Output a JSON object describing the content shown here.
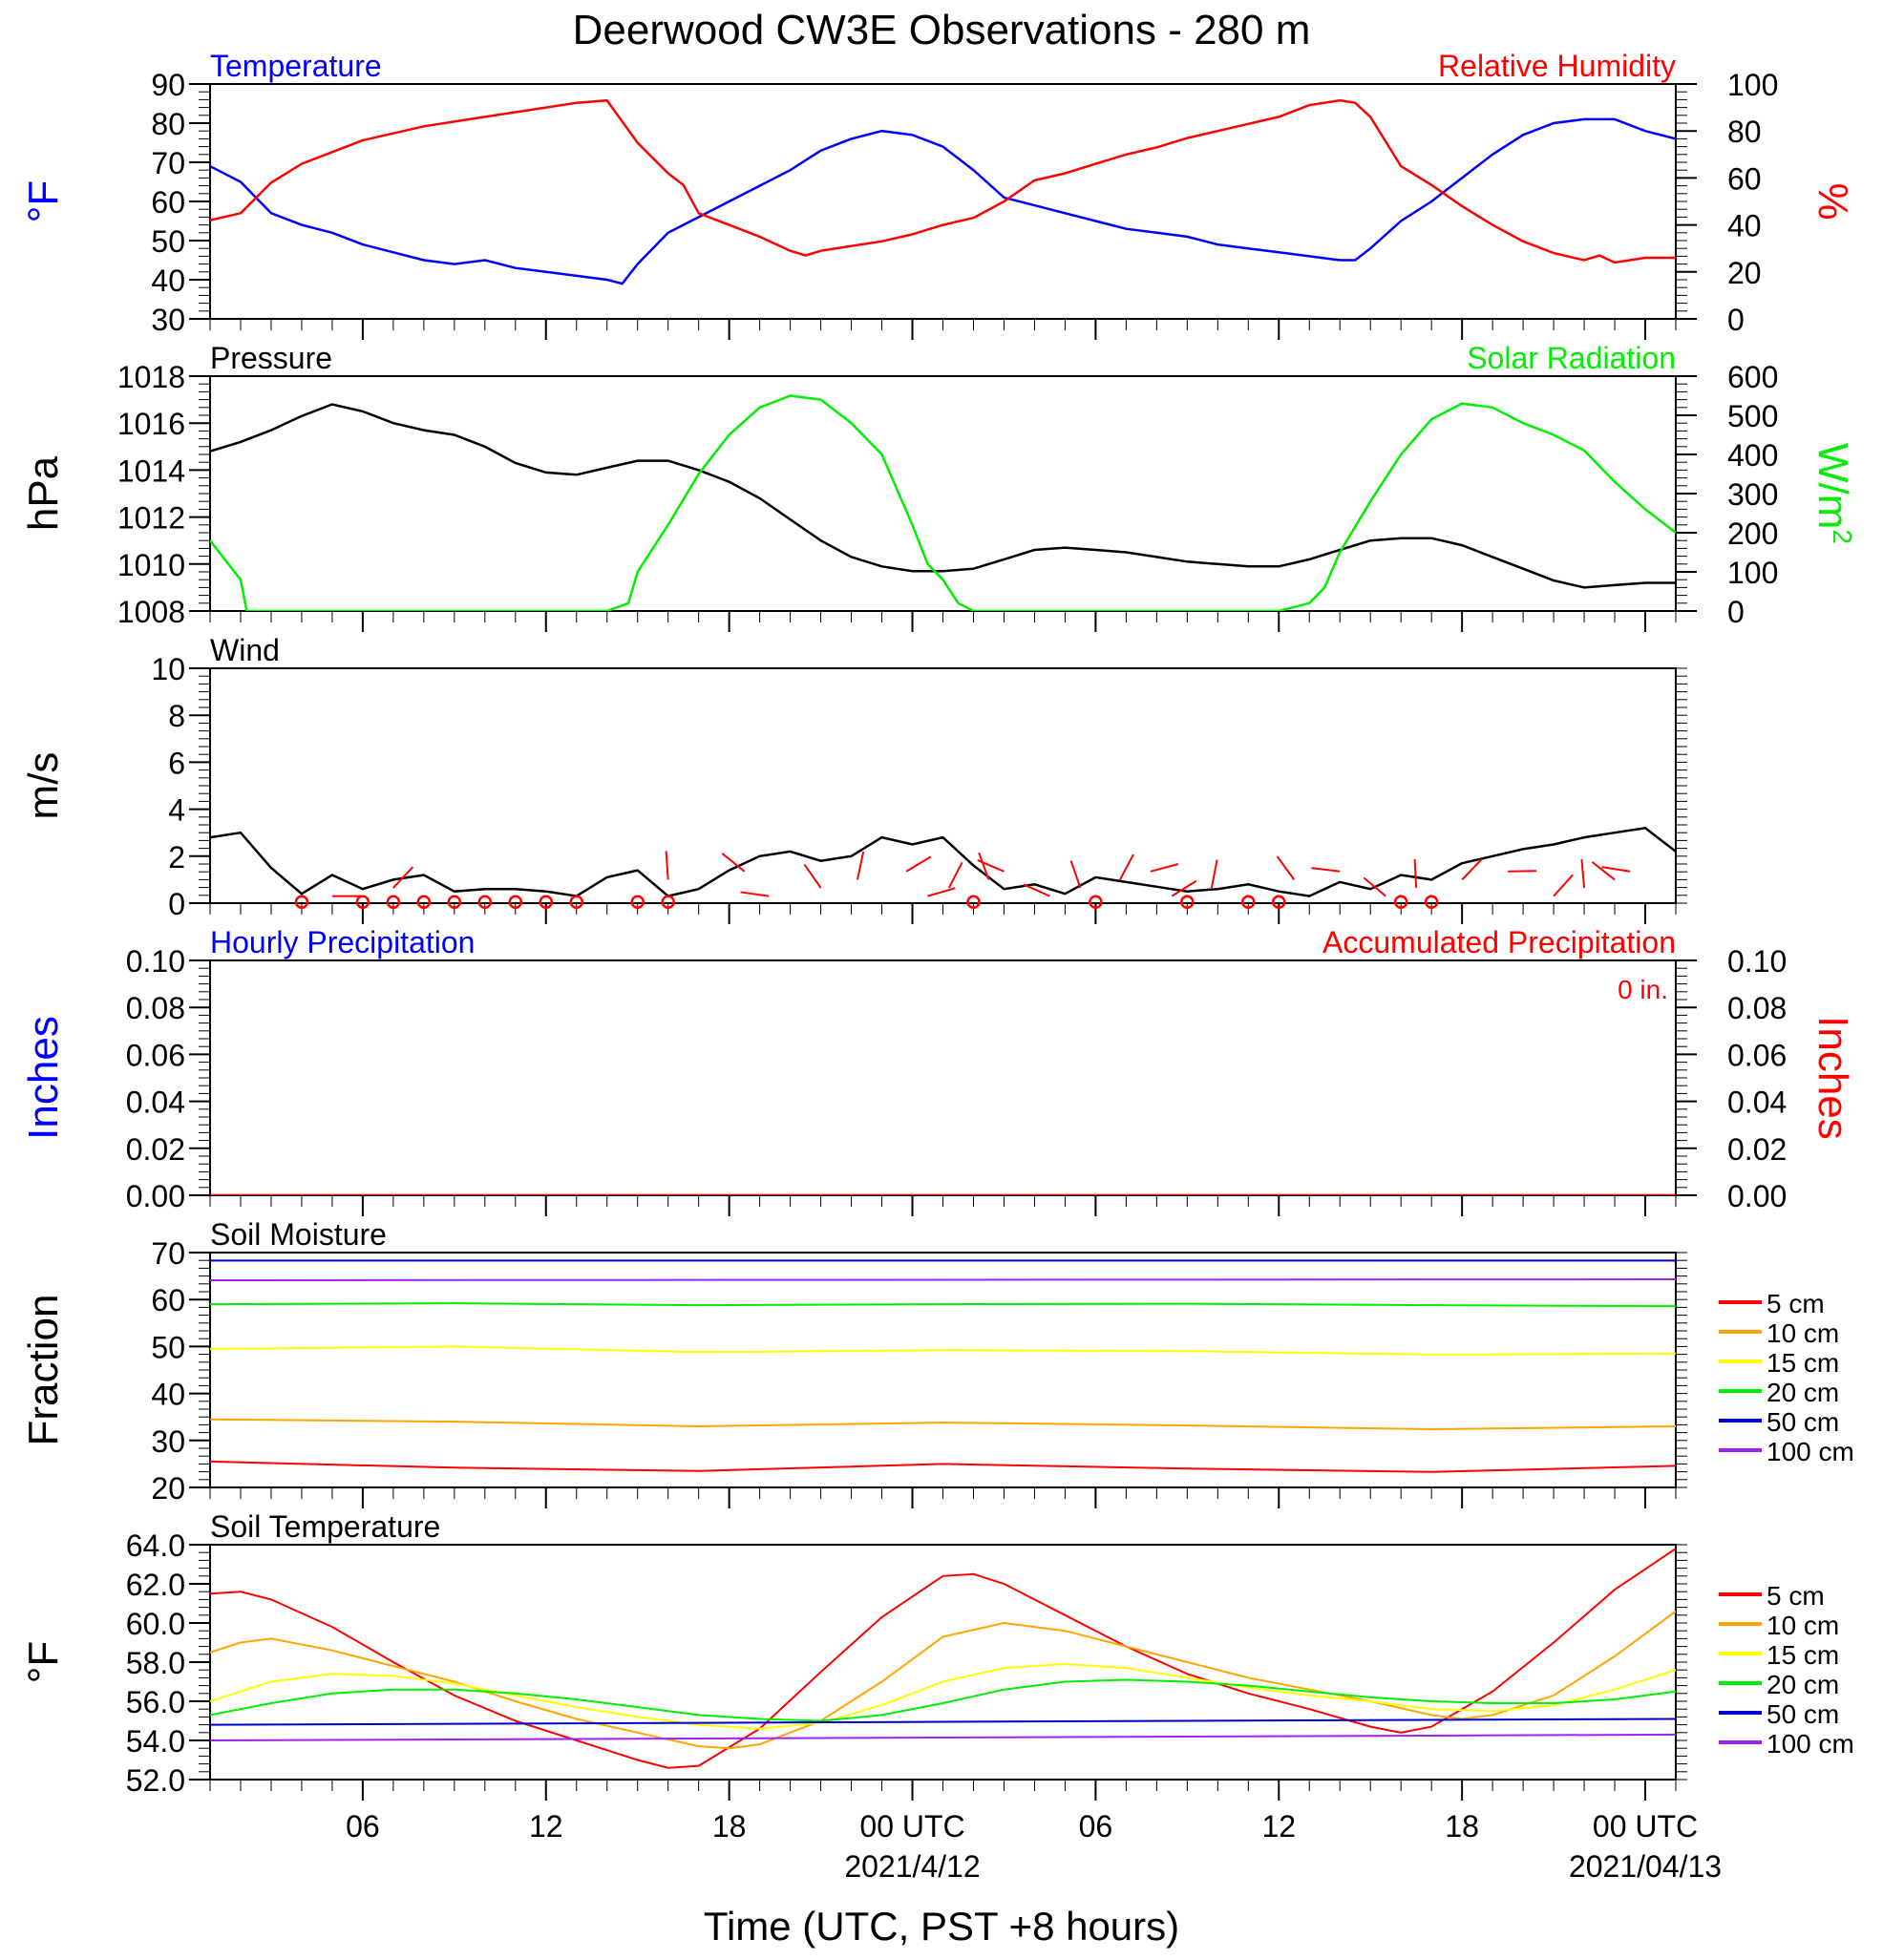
{
  "title": "Deerwood CW3E Observations - 280 m",
  "xlabel": "Time (UTC, PST +8 hours)",
  "x_axis": {
    "range_hours": [
      0,
      48
    ],
    "ticks": [
      {
        "h": 5,
        "label": "06",
        "date": ""
      },
      {
        "h": 11,
        "label": "12",
        "date": ""
      },
      {
        "h": 17,
        "label": "18",
        "date": ""
      },
      {
        "h": 23,
        "label": "00 UTC",
        "date": "2021/4/12"
      },
      {
        "h": 29,
        "label": "06",
        "date": ""
      },
      {
        "h": 35,
        "label": "12",
        "date": ""
      },
      {
        "h": 41,
        "label": "18",
        "date": ""
      },
      {
        "h": 47,
        "label": "00 UTC",
        "date": "2021/04/13"
      }
    ]
  },
  "colors": {
    "blue": "#0000ff",
    "red": "#ff0000",
    "green": "#00ee00",
    "black": "#000000",
    "orange": "#ffa500",
    "yellow": "#ffff00",
    "purple": "#a020f0"
  },
  "chart_data": [
    {
      "id": "temp_rh",
      "type": "line",
      "title_left": "Temperature",
      "title_right": "Relative Humidity",
      "ylabel_left": "°F",
      "ylabel_right": "%",
      "ylim_left": [
        30,
        90
      ],
      "ylim_right": [
        0,
        100
      ],
      "yticks_left": [
        "30",
        "40",
        "50",
        "60",
        "70",
        "80",
        "90"
      ],
      "yticks_right": [
        "0",
        "20",
        "40",
        "60",
        "80",
        "100"
      ],
      "series": [
        {
          "name": "Temperature",
          "axis": "left",
          "color": "#0000ff",
          "x": [
            0,
            1,
            2,
            3,
            4,
            5,
            6,
            7,
            8,
            9,
            10,
            11,
            12,
            13,
            13.5,
            14,
            15,
            16,
            17,
            18,
            19,
            20,
            21,
            22,
            23,
            24,
            25,
            26,
            27,
            28,
            29,
            30,
            31,
            32,
            33,
            34,
            35,
            36,
            37,
            37.5,
            38,
            39,
            40,
            41,
            42,
            43,
            44,
            45,
            46,
            47,
            48
          ],
          "y": [
            69,
            65,
            57,
            54,
            52,
            49,
            47,
            45,
            44,
            45,
            43,
            42,
            41,
            40,
            39,
            44,
            52,
            56,
            60,
            64,
            68,
            73,
            76,
            78,
            77,
            74,
            68,
            61,
            59,
            57,
            55,
            53,
            52,
            51,
            49,
            48,
            47,
            46,
            45,
            45,
            48,
            55,
            60,
            66,
            72,
            77,
            80,
            81,
            81,
            78,
            76
          ]
        },
        {
          "name": "Relative Humidity",
          "axis": "right",
          "color": "#ff0000",
          "x": [
            0,
            1,
            2,
            3,
            4,
            5,
            6,
            7,
            8,
            9,
            10,
            11,
            12,
            13,
            14,
            15,
            15.5,
            16,
            17,
            18,
            19,
            19.5,
            20,
            21,
            22,
            23,
            24,
            25,
            26,
            27,
            28,
            29,
            30,
            31,
            32,
            33,
            34,
            35,
            36,
            37,
            37.5,
            38,
            39,
            40,
            41,
            42,
            43,
            44,
            45,
            45.5,
            46,
            47,
            48
          ],
          "y": [
            42,
            45,
            58,
            66,
            71,
            76,
            79,
            82,
            84,
            86,
            88,
            90,
            92,
            93,
            75,
            62,
            57,
            45,
            40,
            35,
            29,
            27,
            29,
            31,
            33,
            36,
            40,
            43,
            50,
            59,
            62,
            66,
            70,
            73,
            77,
            80,
            83,
            86,
            91,
            93,
            92,
            86,
            65,
            57,
            48,
            40,
            33,
            28,
            25,
            27,
            24,
            26,
            26
          ]
        }
      ]
    },
    {
      "id": "pressure_solar",
      "type": "line",
      "title_left": "Pressure",
      "title_right": "Solar Radiation",
      "ylabel_left": "hPa",
      "ylabel_right": "W/m",
      "ylabel_right_sup": "2",
      "ylim_left": [
        1008,
        1018
      ],
      "ylim_right": [
        0,
        600
      ],
      "yticks_left": [
        "1008",
        "1010",
        "1012",
        "1014",
        "1016",
        "1018"
      ],
      "yticks_right": [
        "0",
        "100",
        "200",
        "300",
        "400",
        "500",
        "600"
      ],
      "series": [
        {
          "name": "Pressure",
          "axis": "left",
          "color": "#000000",
          "x": [
            0,
            1,
            2,
            3,
            4,
            5,
            6,
            7,
            8,
            9,
            10,
            11,
            12,
            13,
            14,
            15,
            16,
            17,
            18,
            19,
            20,
            21,
            22,
            23,
            24,
            25,
            26,
            27,
            28,
            29,
            30,
            31,
            32,
            33,
            34,
            35,
            36,
            37,
            38,
            39,
            40,
            41,
            42,
            43,
            44,
            45,
            46,
            47,
            48
          ],
          "y": [
            1014.8,
            1015.2,
            1015.7,
            1016.3,
            1016.8,
            1016.5,
            1016.0,
            1015.7,
            1015.5,
            1015.0,
            1014.3,
            1013.9,
            1013.8,
            1014.1,
            1014.4,
            1014.4,
            1014.0,
            1013.5,
            1012.8,
            1011.9,
            1011.0,
            1010.3,
            1009.9,
            1009.7,
            1009.7,
            1009.8,
            1010.2,
            1010.6,
            1010.7,
            1010.6,
            1010.5,
            1010.3,
            1010.1,
            1010.0,
            1009.9,
            1009.9,
            1010.2,
            1010.6,
            1011.0,
            1011.1,
            1011.1,
            1010.8,
            1010.3,
            1009.8,
            1009.3,
            1009.0,
            1009.1,
            1009.2,
            1009.2
          ]
        },
        {
          "name": "Solar Radiation",
          "axis": "right",
          "color": "#00ee00",
          "x": [
            0,
            1,
            1.2,
            2,
            5,
            10,
            13,
            13.7,
            14,
            15,
            16,
            17,
            18,
            19,
            20,
            21,
            22,
            23,
            23.5,
            24,
            24.5,
            25,
            30,
            34,
            35,
            36,
            36.5,
            37,
            38,
            39,
            40,
            41,
            42,
            43,
            44,
            45,
            46,
            47,
            48
          ],
          "y": [
            180,
            80,
            0,
            0,
            0,
            0,
            0,
            20,
            100,
            220,
            350,
            450,
            520,
            550,
            540,
            480,
            400,
            220,
            120,
            80,
            20,
            0,
            0,
            0,
            0,
            20,
            60,
            150,
            280,
            400,
            490,
            530,
            520,
            480,
            450,
            410,
            330,
            260,
            200
          ]
        }
      ]
    },
    {
      "id": "wind",
      "type": "line",
      "title_left": "Wind",
      "ylabel_left": "m/s",
      "ylim_left": [
        0,
        10
      ],
      "yticks_left": [
        "0",
        "2",
        "4",
        "6",
        "8",
        "10"
      ],
      "series": [
        {
          "name": "Wind",
          "axis": "left",
          "color": "#000000",
          "x": [
            0,
            1,
            2,
            3,
            4,
            5,
            6,
            7,
            8,
            9,
            10,
            11,
            12,
            13,
            14,
            15,
            16,
            17,
            18,
            19,
            20,
            21,
            22,
            23,
            24,
            25,
            26,
            27,
            28,
            29,
            30,
            31,
            32,
            33,
            34,
            35,
            36,
            37,
            38,
            39,
            40,
            41,
            42,
            43,
            44,
            45,
            46,
            47,
            48
          ],
          "y": [
            2.8,
            3.0,
            1.5,
            0.4,
            1.2,
            0.6,
            1.0,
            1.2,
            0.5,
            0.6,
            0.6,
            0.5,
            0.3,
            1.1,
            1.4,
            0.3,
            0.6,
            1.4,
            2.0,
            2.2,
            1.8,
            2.0,
            2.8,
            2.5,
            2.8,
            1.6,
            0.6,
            0.8,
            0.4,
            1.1,
            0.9,
            0.7,
            0.5,
            0.6,
            0.8,
            0.5,
            0.3,
            0.9,
            0.6,
            1.2,
            1.0,
            1.7,
            2.0,
            2.3,
            2.5,
            2.8,
            3.0,
            3.2,
            2.2
          ]
        }
      ],
      "barbs": [
        4,
        6,
        15,
        17.5,
        18.3,
        20,
        21.2,
        22.8,
        23.5,
        24.2,
        25.5,
        26,
        27.5,
        28.5,
        29.8,
        30.8,
        31.5,
        32.8,
        35.5,
        37,
        38.5,
        39.5,
        41,
        42.5,
        44,
        45,
        46,
        46.5
      ]
    },
    {
      "id": "precip",
      "type": "line",
      "title_left": "Hourly Precipitation",
      "title_right": "Accumulated Precipitation",
      "annotation": "0 in.",
      "ylabel_left": "Inches",
      "ylabel_right": "Inches",
      "ylim_left": [
        0,
        0.1
      ],
      "ylim_right": [
        0,
        0.1
      ],
      "yticks_left": [
        "0.00",
        "0.02",
        "0.04",
        "0.06",
        "0.08",
        "0.10"
      ],
      "yticks_right": [
        "0.00",
        "0.02",
        "0.04",
        "0.06",
        "0.08",
        "0.10"
      ],
      "series": [
        {
          "name": "Accumulated Precipitation",
          "axis": "left",
          "color": "#ff0000",
          "x": [
            0,
            48
          ],
          "y": [
            0,
            0
          ]
        }
      ]
    },
    {
      "id": "soil_moisture",
      "type": "line",
      "title_left": "Soil Moisture",
      "ylabel_left": "Fraction",
      "ylim_left": [
        20,
        70
      ],
      "yticks_left": [
        "20",
        "30",
        "40",
        "50",
        "60",
        "70"
      ],
      "series": [
        {
          "name": "5 cm",
          "color": "#ff0000",
          "x": [
            0,
            8,
            16,
            24,
            32,
            40,
            48
          ],
          "y": [
            25.5,
            24.2,
            23.5,
            25.0,
            24.0,
            23.3,
            24.6
          ]
        },
        {
          "name": "10 cm",
          "color": "#ffa500",
          "x": [
            0,
            8,
            16,
            24,
            32,
            40,
            48
          ],
          "y": [
            34.5,
            34.0,
            33.0,
            33.8,
            33.2,
            32.4,
            33.0
          ]
        },
        {
          "name": "15 cm",
          "color": "#ffff00",
          "x": [
            0,
            8,
            16,
            24,
            32,
            40,
            48
          ],
          "y": [
            49.5,
            50.0,
            48.8,
            49.2,
            49.0,
            48.3,
            48.5
          ]
        },
        {
          "name": "20 cm",
          "color": "#00ee00",
          "x": [
            0,
            8,
            16,
            24,
            32,
            40,
            48
          ],
          "y": [
            59.0,
            59.2,
            58.8,
            59.0,
            59.1,
            58.8,
            58.6
          ]
        },
        {
          "name": "50 cm",
          "color": "#0000cd",
          "x": [
            0,
            48
          ],
          "y": [
            68.3,
            68.3
          ]
        },
        {
          "name": "100 cm",
          "color": "#a020f0",
          "x": [
            0,
            48
          ],
          "y": [
            64.1,
            64.3
          ]
        }
      ]
    },
    {
      "id": "soil_temp",
      "type": "line",
      "title_left": "Soil Temperature",
      "ylabel_left": "°F",
      "ylim_left": [
        52,
        64
      ],
      "yticks_left": [
        "52.0",
        "54.0",
        "56.0",
        "58.0",
        "60.0",
        "62.0",
        "64.0"
      ],
      "series": [
        {
          "name": "5 cm",
          "color": "#ff0000",
          "x": [
            0,
            1,
            2,
            4,
            6,
            8,
            10,
            12,
            14,
            15,
            16,
            18,
            20,
            22,
            24,
            25,
            26,
            28,
            30,
            32,
            34,
            36,
            38,
            39,
            40,
            42,
            44,
            46,
            48
          ],
          "y": [
            61.5,
            61.6,
            61.2,
            59.8,
            58.0,
            56.3,
            55.0,
            54.0,
            53.0,
            52.6,
            52.7,
            54.6,
            57.5,
            60.3,
            62.4,
            62.5,
            62.0,
            60.4,
            58.8,
            57.4,
            56.4,
            55.6,
            54.7,
            54.4,
            54.7,
            56.5,
            59.0,
            61.7,
            63.8
          ]
        },
        {
          "name": "10 cm",
          "color": "#ffa500",
          "x": [
            0,
            1,
            2,
            4,
            6,
            8,
            10,
            12,
            14,
            16,
            17,
            18,
            20,
            22,
            24,
            26,
            28,
            30,
            32,
            34,
            36,
            38,
            40,
            41,
            42,
            44,
            46,
            48
          ],
          "y": [
            58.5,
            59.0,
            59.2,
            58.6,
            57.8,
            57.0,
            56.0,
            55.1,
            54.4,
            53.7,
            53.6,
            53.8,
            55.0,
            57.0,
            59.3,
            60.0,
            59.6,
            58.8,
            58.0,
            57.2,
            56.6,
            56.0,
            55.3,
            55.1,
            55.3,
            56.3,
            58.3,
            60.6
          ]
        },
        {
          "name": "15 cm",
          "color": "#ffff00",
          "x": [
            0,
            2,
            4,
            6,
            8,
            10,
            12,
            14,
            16,
            18,
            20,
            22,
            24,
            26,
            28,
            30,
            32,
            34,
            36,
            38,
            40,
            42,
            44,
            46,
            48
          ],
          "y": [
            56.0,
            57.0,
            57.4,
            57.3,
            56.9,
            56.3,
            55.7,
            55.2,
            54.8,
            54.6,
            54.9,
            55.8,
            57.0,
            57.7,
            57.9,
            57.7,
            57.2,
            56.7,
            56.3,
            56.0,
            55.6,
            55.5,
            55.8,
            56.6,
            57.6
          ]
        },
        {
          "name": "20 cm",
          "color": "#00ee00",
          "x": [
            0,
            2,
            4,
            6,
            8,
            10,
            12,
            14,
            16,
            18,
            20,
            22,
            24,
            26,
            28,
            30,
            32,
            34,
            36,
            38,
            40,
            42,
            44,
            46,
            48
          ],
          "y": [
            55.3,
            55.9,
            56.4,
            56.6,
            56.6,
            56.4,
            56.1,
            55.7,
            55.3,
            55.1,
            55.0,
            55.3,
            55.9,
            56.6,
            57.0,
            57.1,
            57.0,
            56.8,
            56.5,
            56.2,
            56.0,
            55.9,
            55.9,
            56.1,
            56.5
          ]
        },
        {
          "name": "50 cm",
          "color": "#0000cd",
          "x": [
            0,
            48
          ],
          "y": [
            54.8,
            55.1
          ]
        },
        {
          "name": "100 cm",
          "color": "#a020f0",
          "x": [
            0,
            48
          ],
          "y": [
            54.0,
            54.3
          ]
        }
      ]
    }
  ]
}
